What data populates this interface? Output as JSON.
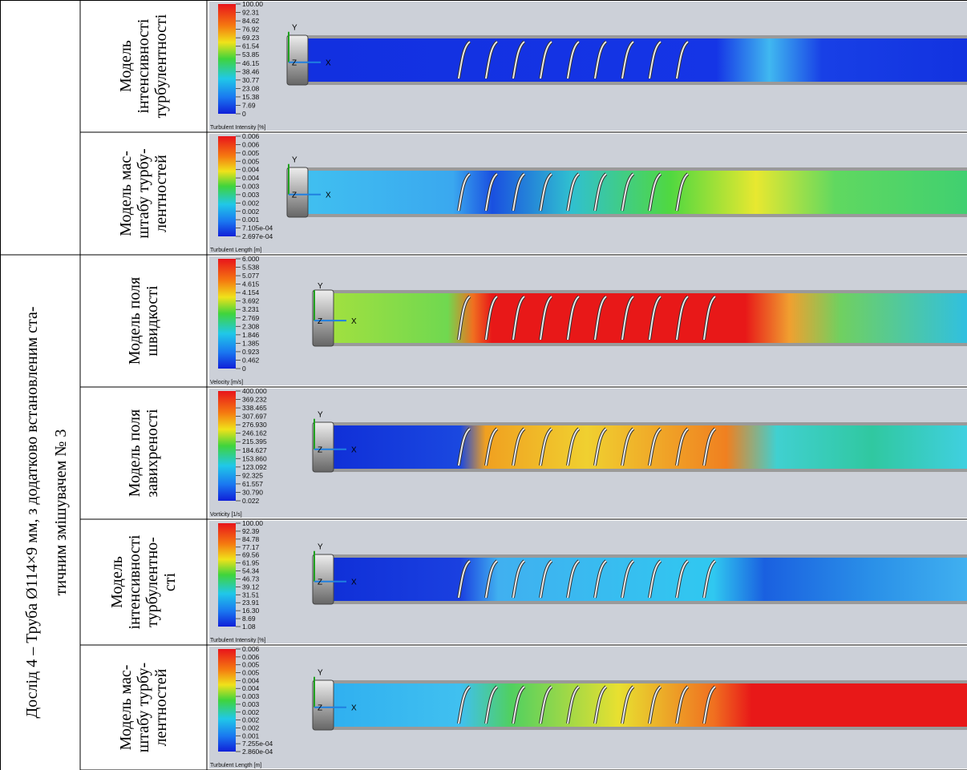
{
  "group": {
    "label": [
      "Дослід  4 – Труба Ø114×9 мм, з додатково встановленим ста-",
      "тичним змішувачем № 3"
    ]
  },
  "axis_labels": {
    "x": "X",
    "y": "Y",
    "z": "Z"
  },
  "rows": [
    {
      "label": [
        "Модель",
        "інтенсивності",
        "турбулентності"
      ],
      "legend": {
        "title": "Turbulent Intensity [%]",
        "ticks": [
          "100.00",
          "92.31",
          "84.62",
          "76.92",
          "69.23",
          "61.54",
          "53.85",
          "46.15",
          "38.46",
          "30.77",
          "23.08",
          "15.38",
          "7.69",
          "0"
        ]
      }
    },
    {
      "label": [
        "Модель мас-",
        "штабу турбу-",
        "лентностей"
      ],
      "legend": {
        "title": "Turbulent Length [m]",
        "ticks": [
          "0.006",
          "0.006",
          "0.005",
          "0.005",
          "0.004",
          "0.004",
          "0.003",
          "0.003",
          "0.002",
          "0.002",
          "0.001",
          "7.105e-04",
          "2.697e-04"
        ]
      }
    },
    {
      "label": [
        "Модель поля",
        "швидкості"
      ],
      "legend": {
        "title": "Velocity [m/s]",
        "ticks": [
          "6.000",
          "5.538",
          "5.077",
          "4.615",
          "4.154",
          "3.692",
          "3.231",
          "2.769",
          "2.308",
          "1.846",
          "1.385",
          "0.923",
          "0.462",
          "0"
        ]
      }
    },
    {
      "label": [
        "Модель поля",
        "завихреності"
      ],
      "legend": {
        "title": "Vorticity [1/s]",
        "ticks": [
          "400.000",
          "369.232",
          "338.465",
          "307.697",
          "276.930",
          "246.162",
          "215.395",
          "184.627",
          "153.860",
          "123.092",
          "92.325",
          "61.557",
          "30.790",
          "0.022"
        ]
      }
    },
    {
      "label": [
        "Модель",
        "інтенсивності",
        "турбулентно-",
        "сті"
      ],
      "legend": {
        "title": "Turbulent Intensity [%]",
        "ticks": [
          "100.00",
          "92.39",
          "84.78",
          "77.17",
          "69.56",
          "61.95",
          "54.34",
          "46.73",
          "39.12",
          "31.51",
          "23.91",
          "16.30",
          "8.69",
          "1.08"
        ]
      }
    },
    {
      "label": [
        "Модель мас-",
        "штабу турбу-",
        "лентностей"
      ],
      "legend": {
        "title": "Turbulent Length [m]",
        "ticks": [
          "0.006",
          "0.006",
          "0.005",
          "0.005",
          "0.004",
          "0.004",
          "0.003",
          "0.003",
          "0.002",
          "0.002",
          "0.002",
          "0.001",
          "7.255e-04",
          "2.860e-04"
        ]
      }
    }
  ]
}
